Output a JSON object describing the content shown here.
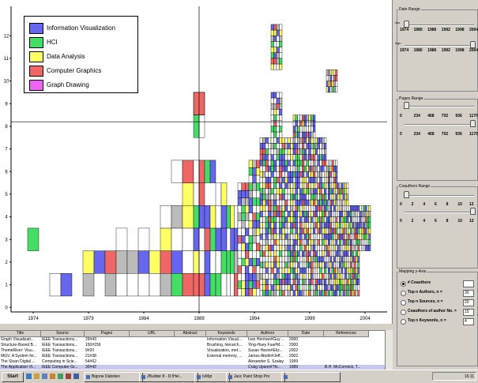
{
  "legend": [
    {
      "label": "Information Visualization",
      "color": "#6666ee"
    },
    {
      "label": "HCI",
      "color": "#44dd66"
    },
    {
      "label": "Data Analysis",
      "color": "#ffff66"
    },
    {
      "label": "Computer Graphics",
      "color": "#ee6666"
    },
    {
      "label": "Graph Drawing",
      "color": "#ee66ee"
    }
  ],
  "chart_data": {
    "type": "scatter",
    "xlim": [
      1972,
      2006
    ],
    "ylim": [
      -0.2,
      13.3
    ],
    "x_ticks": [
      "1974",
      "1979",
      "1984",
      "1989",
      "1994",
      "1999",
      "2004"
    ],
    "y_ticks": [
      "0",
      "1",
      "2",
      "3",
      "4",
      "5",
      "6",
      "7",
      "8",
      "9",
      "10",
      "11",
      "12"
    ],
    "crosshair": {
      "x": 1989,
      "y": 8.2
    },
    "highlighted": {
      "x": 1989,
      "y": 8.5,
      "category": "Computer Graphics"
    }
  },
  "side": {
    "date_range": {
      "title": "Date Range",
      "ticks": [
        "1974",
        "1980",
        "1986",
        "1992",
        "1998",
        "2004"
      ],
      "edge_lo": "low",
      "edge_hi": "high",
      "low": 1974,
      "high": 2004
    },
    "pages_range": {
      "title": "Pages Range",
      "ticks": [
        "0",
        "234",
        "468",
        "702",
        "936",
        "1170"
      ],
      "low": 0,
      "high": 1170
    },
    "coauthors_range": {
      "title": "Coauthors Range",
      "ticks": [
        "0",
        "2",
        "4",
        "6",
        "8",
        "10",
        "12"
      ],
      "low": 0,
      "high": 12
    },
    "mapping": {
      "title": "Mapping y-Axis",
      "options": [
        {
          "label": "# Coauthors",
          "value": "",
          "selected": true
        },
        {
          "label": "Top n Authors,  n =",
          "value": "30",
          "selected": false
        },
        {
          "label": "Top n Sources,  n =",
          "value": "20",
          "selected": false
        },
        {
          "label": "Coauthors of author No. =",
          "value": "15",
          "selected": false
        },
        {
          "label": "Top n Keywords,  n =",
          "value": "4",
          "selected": false
        }
      ]
    }
  },
  "table": {
    "headers": [
      "Title",
      "Source",
      "Pages",
      "URL",
      "Abstract",
      "Keywords",
      "Authors",
      "Date",
      "References"
    ],
    "rows": [
      [
        "Graph Visualizati...",
        "IEEE Transactions...",
        "29#43",
        "",
        "",
        "Information Visual...",
        "Ivan Herman#Guy ...",
        "2000",
        ""
      ],
      [
        "Structure-Based B...",
        "IEEE Transactions...",
        "150#159",
        "",
        "",
        "Brushing, hierarch...",
        "Ying-Huey Fua#M...",
        "2000",
        ""
      ],
      [
        "ThemeRiver: Visu...",
        "IEEE Transactions...",
        "9#20",
        "",
        "",
        "Visualization, met...",
        "Susan Havre#Eliz...",
        "2002",
        ""
      ],
      [
        "MGV: A System for...",
        "IEEE Transactions...",
        "21#38",
        "",
        "",
        "External memory, ...",
        "James Abello#Jeff...",
        "2002",
        ""
      ],
      [
        "The Sloan Digital ...",
        "Computing in Scie...",
        "54#62",
        "",
        "",
        "",
        "Alexander S. Szalay",
        "1999",
        ""
      ],
      [
        "The Application Vi...",
        "IEEE Computer Gr...",
        "30#42",
        "",
        "",
        "",
        "Craig Upson#Thi...",
        "1989",
        "B.H. McCormick, T..."
      ]
    ],
    "selected_row": 5
  },
  "taskbar": {
    "start": "Start",
    "buttons": [
      "Bigone Daboten",
      "JBuilder 8 - D:/Hel...",
      "IsMgr",
      "Jasc Paint Shop Pro",
      ""
    ],
    "clock": "16:11"
  }
}
